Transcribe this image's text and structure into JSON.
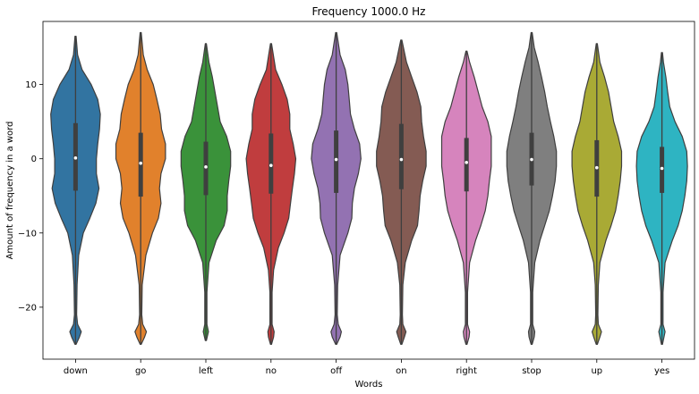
{
  "chart_data": {
    "type": "violin",
    "title": "Frequency 1000.0 Hz",
    "xlabel": "Words",
    "ylabel": "Amount of frequency in a word",
    "ylim": [
      -27,
      18.5
    ],
    "yticks": [
      {
        "value": 10,
        "label": "10"
      },
      {
        "value": 0,
        "label": "0"
      },
      {
        "value": -10,
        "label": "−10"
      },
      {
        "value": -20,
        "label": "−20"
      }
    ],
    "grid": false,
    "categories": [
      "down",
      "go",
      "left",
      "no",
      "off",
      "on",
      "right",
      "stop",
      "up",
      "yes"
    ],
    "colors": [
      "#3274a1",
      "#e1812c",
      "#3a923a",
      "#c03d3e",
      "#9372b2",
      "#845b53",
      "#d684bd",
      "#7f7f7f",
      "#a9aa35",
      "#2eb4c2"
    ],
    "violins": [
      {
        "name": "down",
        "min": -25,
        "max": 16.5,
        "median": 0.1,
        "q1": -4.3,
        "q3": 4.8,
        "profile": [
          [
            -25,
            0.02
          ],
          [
            -24,
            0.15
          ],
          [
            -23.3,
            0.22
          ],
          [
            -22.3,
            0.08
          ],
          [
            -21,
            0.04
          ],
          [
            -17,
            0.06
          ],
          [
            -13,
            0.12
          ],
          [
            -10,
            0.3
          ],
          [
            -8,
            0.55
          ],
          [
            -6,
            0.78
          ],
          [
            -4,
            0.9
          ],
          [
            -2,
            0.8
          ],
          [
            0,
            0.8
          ],
          [
            2,
            0.85
          ],
          [
            4,
            0.92
          ],
          [
            6,
            0.95
          ],
          [
            8,
            0.85
          ],
          [
            10,
            0.6
          ],
          [
            12,
            0.25
          ],
          [
            14,
            0.08
          ],
          [
            16.5,
            0.02
          ]
        ]
      },
      {
        "name": "go",
        "min": -25,
        "max": 17,
        "median": -0.6,
        "q1": -5.1,
        "q3": 3.5,
        "profile": [
          [
            -25,
            0.02
          ],
          [
            -24,
            0.15
          ],
          [
            -23.3,
            0.22
          ],
          [
            -22.3,
            0.08
          ],
          [
            -21,
            0.04
          ],
          [
            -17,
            0.06
          ],
          [
            -13,
            0.2
          ],
          [
            -10,
            0.45
          ],
          [
            -8,
            0.68
          ],
          [
            -6,
            0.78
          ],
          [
            -4,
            0.72
          ],
          [
            -2,
            0.78
          ],
          [
            0,
            0.95
          ],
          [
            2,
            0.95
          ],
          [
            4,
            0.8
          ],
          [
            6,
            0.75
          ],
          [
            8,
            0.62
          ],
          [
            10,
            0.48
          ],
          [
            12,
            0.25
          ],
          [
            14,
            0.1
          ],
          [
            17,
            0.02
          ]
        ]
      },
      {
        "name": "left",
        "min": -24.5,
        "max": 15.5,
        "median": -1.1,
        "q1": -4.9,
        "q3": 2.3,
        "profile": [
          [
            -24.5,
            0.02
          ],
          [
            -23.3,
            0.1
          ],
          [
            -22.3,
            0.04
          ],
          [
            -18,
            0.04
          ],
          [
            -14,
            0.12
          ],
          [
            -11,
            0.4
          ],
          [
            -9,
            0.7
          ],
          [
            -7,
            0.82
          ],
          [
            -5,
            0.82
          ],
          [
            -3,
            0.88
          ],
          [
            -1,
            0.95
          ],
          [
            1,
            0.95
          ],
          [
            3,
            0.8
          ],
          [
            5,
            0.55
          ],
          [
            7,
            0.45
          ],
          [
            9,
            0.35
          ],
          [
            11,
            0.25
          ],
          [
            13,
            0.12
          ],
          [
            15.5,
            0.02
          ]
        ]
      },
      {
        "name": "no",
        "min": -25,
        "max": 15.5,
        "median": -0.9,
        "q1": -4.7,
        "q3": 3.4,
        "profile": [
          [
            -25,
            0.02
          ],
          [
            -24,
            0.1
          ],
          [
            -23.3,
            0.12
          ],
          [
            -22.3,
            0.04
          ],
          [
            -18,
            0.04
          ],
          [
            -15,
            0.1
          ],
          [
            -12,
            0.28
          ],
          [
            -10,
            0.5
          ],
          [
            -8,
            0.68
          ],
          [
            -6,
            0.75
          ],
          [
            -4,
            0.82
          ],
          [
            -2,
            0.9
          ],
          [
            0,
            0.95
          ],
          [
            2,
            0.85
          ],
          [
            4,
            0.72
          ],
          [
            6,
            0.72
          ],
          [
            8,
            0.62
          ],
          [
            10,
            0.42
          ],
          [
            12,
            0.18
          ],
          [
            15.5,
            0.02
          ]
        ]
      },
      {
        "name": "off",
        "min": -25,
        "max": 17,
        "median": -0.1,
        "q1": -4.6,
        "q3": 3.8,
        "profile": [
          [
            -25,
            0.02
          ],
          [
            -24,
            0.15
          ],
          [
            -23.3,
            0.2
          ],
          [
            -22.3,
            0.08
          ],
          [
            -21,
            0.04
          ],
          [
            -17,
            0.06
          ],
          [
            -13,
            0.15
          ],
          [
            -10,
            0.45
          ],
          [
            -8,
            0.6
          ],
          [
            -6,
            0.62
          ],
          [
            -4,
            0.7
          ],
          [
            -2,
            0.85
          ],
          [
            0,
            0.95
          ],
          [
            2,
            0.9
          ],
          [
            4,
            0.7
          ],
          [
            6,
            0.55
          ],
          [
            8,
            0.5
          ],
          [
            10,
            0.45
          ],
          [
            12,
            0.35
          ],
          [
            14,
            0.15
          ],
          [
            17,
            0.02
          ]
        ]
      },
      {
        "name": "on",
        "min": -25,
        "max": 16,
        "median": -0.1,
        "q1": -4.1,
        "q3": 4.7,
        "profile": [
          [
            -25,
            0.02
          ],
          [
            -24,
            0.12
          ],
          [
            -23.3,
            0.18
          ],
          [
            -22.3,
            0.06
          ],
          [
            -21,
            0.04
          ],
          [
            -17,
            0.06
          ],
          [
            -14,
            0.15
          ],
          [
            -11,
            0.4
          ],
          [
            -9,
            0.62
          ],
          [
            -7,
            0.68
          ],
          [
            -5,
            0.72
          ],
          [
            -3,
            0.82
          ],
          [
            -1,
            0.95
          ],
          [
            1,
            0.95
          ],
          [
            3,
            0.85
          ],
          [
            5,
            0.78
          ],
          [
            7,
            0.75
          ],
          [
            9,
            0.6
          ],
          [
            11,
            0.4
          ],
          [
            13,
            0.2
          ],
          [
            16,
            0.02
          ]
        ]
      },
      {
        "name": "right",
        "min": -25,
        "max": 14.5,
        "median": -0.5,
        "q1": -4.4,
        "q3": 2.8,
        "profile": [
          [
            -25,
            0.02
          ],
          [
            -24,
            0.1
          ],
          [
            -23.3,
            0.12
          ],
          [
            -22.3,
            0.04
          ],
          [
            -18,
            0.04
          ],
          [
            -14,
            0.12
          ],
          [
            -11,
            0.35
          ],
          [
            -9,
            0.55
          ],
          [
            -7,
            0.72
          ],
          [
            -5,
            0.82
          ],
          [
            -3,
            0.88
          ],
          [
            -1,
            0.95
          ],
          [
            1,
            0.95
          ],
          [
            3,
            0.95
          ],
          [
            5,
            0.82
          ],
          [
            7,
            0.6
          ],
          [
            9,
            0.45
          ],
          [
            11,
            0.3
          ],
          [
            13,
            0.12
          ],
          [
            14.5,
            0.02
          ]
        ]
      },
      {
        "name": "stop",
        "min": -25,
        "max": 17,
        "median": -0.1,
        "q1": -3.6,
        "q3": 3.5,
        "profile": [
          [
            -25,
            0.02
          ],
          [
            -24,
            0.1
          ],
          [
            -23.3,
            0.12
          ],
          [
            -22.3,
            0.04
          ],
          [
            -18,
            0.04
          ],
          [
            -14,
            0.12
          ],
          [
            -11,
            0.32
          ],
          [
            -9,
            0.5
          ],
          [
            -7,
            0.68
          ],
          [
            -5,
            0.8
          ],
          [
            -3,
            0.9
          ],
          [
            -1,
            0.95
          ],
          [
            1,
            0.95
          ],
          [
            3,
            0.85
          ],
          [
            5,
            0.72
          ],
          [
            7,
            0.6
          ],
          [
            9,
            0.5
          ],
          [
            11,
            0.38
          ],
          [
            13,
            0.25
          ],
          [
            15,
            0.1
          ],
          [
            17,
            0.02
          ]
        ]
      },
      {
        "name": "up",
        "min": -25,
        "max": 15.5,
        "median": -1.2,
        "q1": -5.1,
        "q3": 2.5,
        "profile": [
          [
            -25,
            0.02
          ],
          [
            -24,
            0.12
          ],
          [
            -23.3,
            0.18
          ],
          [
            -22.3,
            0.06
          ],
          [
            -21,
            0.04
          ],
          [
            -17,
            0.06
          ],
          [
            -14,
            0.12
          ],
          [
            -11,
            0.35
          ],
          [
            -9,
            0.55
          ],
          [
            -7,
            0.72
          ],
          [
            -5,
            0.82
          ],
          [
            -3,
            0.9
          ],
          [
            -1,
            0.95
          ],
          [
            1,
            0.95
          ],
          [
            3,
            0.82
          ],
          [
            5,
            0.65
          ],
          [
            7,
            0.55
          ],
          [
            9,
            0.45
          ],
          [
            11,
            0.3
          ],
          [
            13,
            0.12
          ],
          [
            15.5,
            0.02
          ]
        ]
      },
      {
        "name": "yes",
        "min": -25,
        "max": 14.3,
        "median": -1.3,
        "q1": -4.6,
        "q3": 1.6,
        "profile": [
          [
            -25,
            0.02
          ],
          [
            -24,
            0.08
          ],
          [
            -23.3,
            0.12
          ],
          [
            -22.3,
            0.04
          ],
          [
            -18,
            0.04
          ],
          [
            -14,
            0.12
          ],
          [
            -11,
            0.4
          ],
          [
            -9,
            0.62
          ],
          [
            -7,
            0.78
          ],
          [
            -5,
            0.88
          ],
          [
            -3,
            0.95
          ],
          [
            -1,
            0.98
          ],
          [
            1,
            0.95
          ],
          [
            3,
            0.78
          ],
          [
            5,
            0.5
          ],
          [
            7,
            0.3
          ],
          [
            9,
            0.22
          ],
          [
            11,
            0.15
          ],
          [
            13,
            0.06
          ],
          [
            14.3,
            0.02
          ]
        ]
      }
    ]
  }
}
